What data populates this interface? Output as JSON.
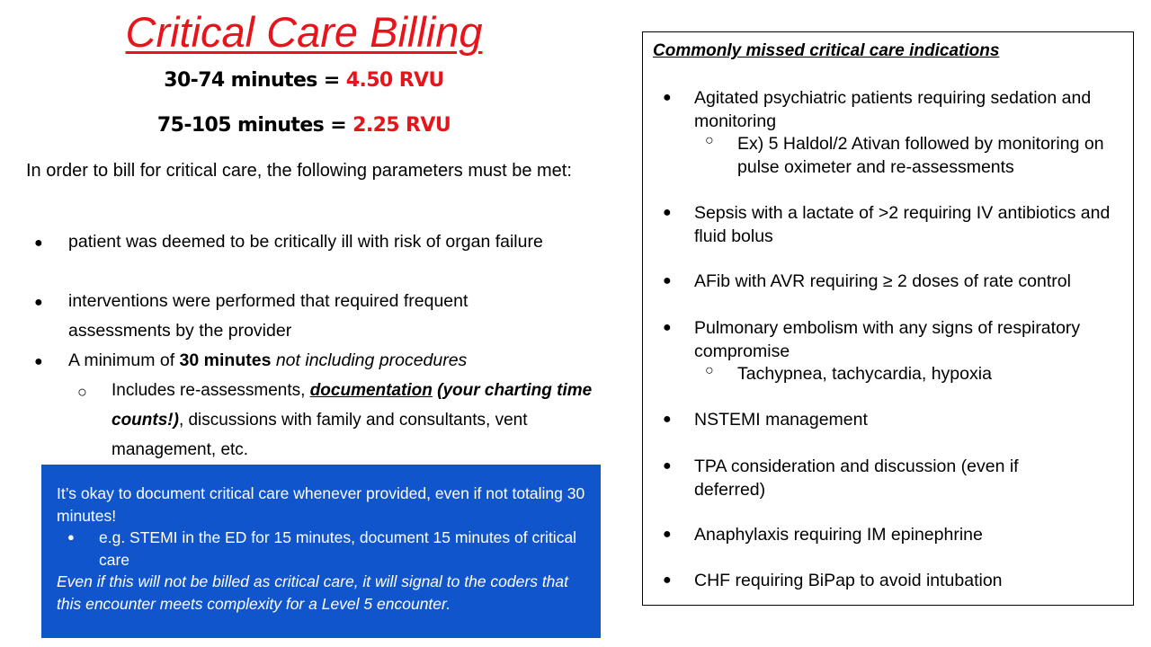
{
  "title": "Critical Care Billing",
  "rvu": [
    {
      "range": "30-74 minutes = ",
      "value": "4.50 RVU"
    },
    {
      "range": "75-105 minutes = ",
      "value": "2.25 RVU"
    }
  ],
  "intro": "In order to bill for critical care, the following parameters must be met:",
  "criteria": {
    "item1": "patient was deemed to be critically ill with risk of organ failure",
    "item2": "interventions were performed that required frequent assessments by the provider",
    "item3_prefix": "A minimum of ",
    "item3_bold": "30 minutes",
    "item3_italic": " not including procedures",
    "sub_prefix": "Includes re-assessments, ",
    "sub_bold_underline": "documentation",
    "sub_bold_italic": " (your charting time counts!)",
    "sub_suffix": ", discussions with family and consultants, vent management, etc."
  },
  "callout": {
    "main": "It’s okay to document critical care whenever provided, even if not totaling 30 minutes!",
    "example": "e.g. STEMI in the ED for 15 minutes, document 15 minutes of critical care",
    "note": "Even if this will not be billed as critical care, it will signal to the coders that this encounter meets complexity for a Level 5 encounter.",
    "bg_color": "#1155cc"
  },
  "indications": {
    "title": "Commonly missed critical care indications",
    "items": [
      {
        "text": "Agitated psychiatric patients requiring sedation and monitoring",
        "sub": "Ex) 5 Haldol/2 Ativan followed by monitoring on pulse oximeter and re-assessments"
      },
      {
        "text": "Sepsis with a lactate of >2 requiring IV antibiotics and fluid bolus"
      },
      {
        "text": "AFib with AVR requiring ≥ 2 doses of rate control"
      },
      {
        "text": "Pulmonary embolism with any signs of respiratory compromise",
        "sub": "Tachypnea, tachycardia, hypoxia"
      },
      {
        "text": "NSTEMI management"
      },
      {
        "text": "TPA consideration and discussion (even if deferred)"
      },
      {
        "text": "Anaphylaxis requiring IM epinephrine"
      },
      {
        "text": "CHF requiring BiPap to avoid intubation"
      }
    ]
  },
  "accent_color": "#e8141b"
}
